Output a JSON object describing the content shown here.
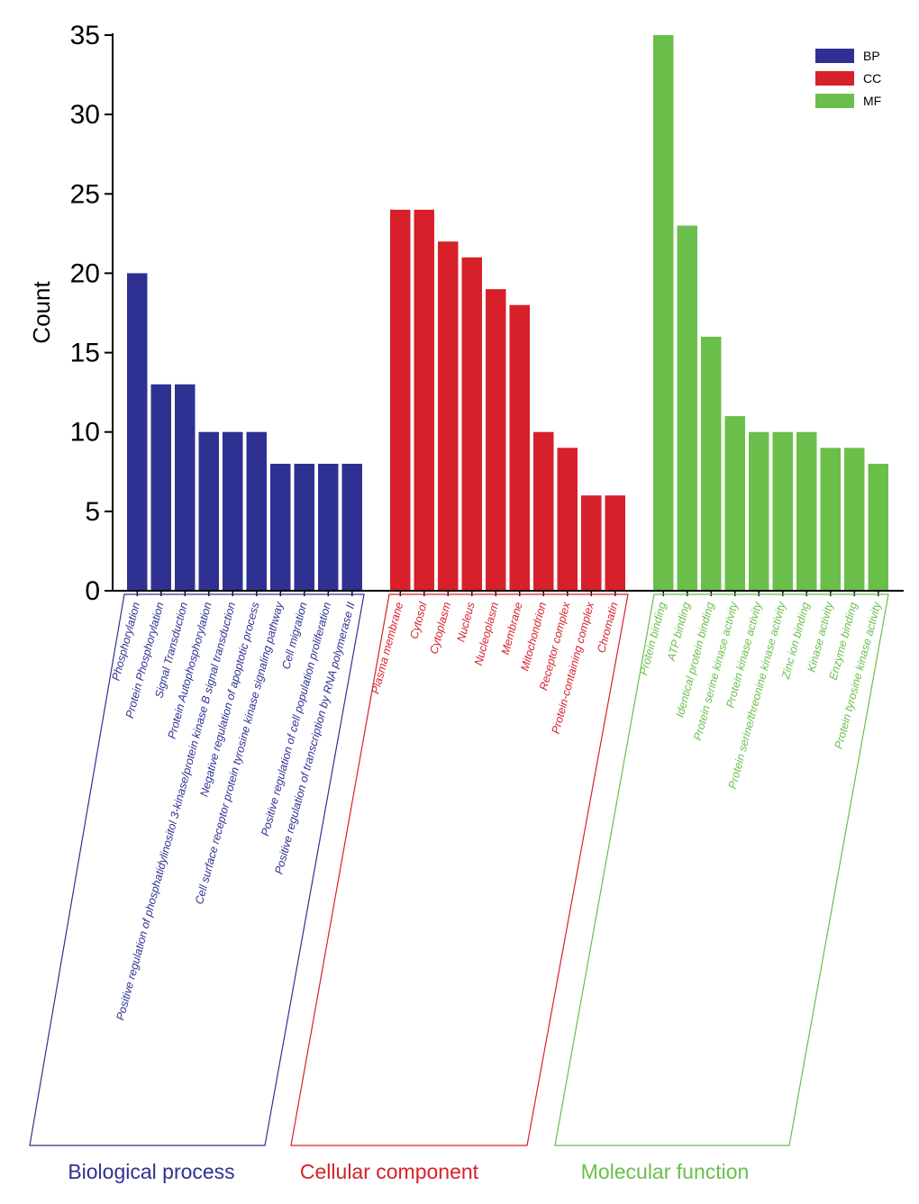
{
  "chart_data": {
    "type": "bar",
    "ylabel": "Count",
    "xlabel": "",
    "ylim": [
      0,
      35
    ],
    "yticks": [
      0,
      5,
      10,
      15,
      20,
      25,
      30,
      35
    ],
    "legend_position": "top-right",
    "legend": [
      {
        "key": "BP",
        "color": "#2e3192"
      },
      {
        "key": "CC",
        "color": "#d7202a"
      },
      {
        "key": "MF",
        "color": "#6abf4b"
      }
    ],
    "groups": [
      {
        "key": "BP",
        "title": "Biological process",
        "color": "#2e3192",
        "categories": [
          "Phosphorylation",
          "Protein Phosphorylation",
          "Signal Transduction",
          "Protein Autophosphorylation",
          "Positive regulation of phosphatidylinositol 3-kinase/protein kinase B signal transduction",
          "Negative regulation of apoptotic process",
          "Cell surface receptor protein tyrosine kinase signaling pathway",
          "Cell migration",
          "Positive regulation of cell population proliferation",
          "Positive regulation of transcription by RNA polymerase II"
        ],
        "values": [
          20,
          13,
          13,
          10,
          10,
          10,
          8,
          8,
          8,
          8
        ]
      },
      {
        "key": "CC",
        "title": "Cellular component",
        "color": "#d7202a",
        "categories": [
          "Plasma membrane",
          "Cytosol",
          "Cytoplasm",
          "Nucleus",
          "Nucleoplasm",
          "Membrane",
          "Mitochondrion",
          "Receptor complex",
          "Protein-containing complex",
          "Chromatin"
        ],
        "values": [
          24,
          24,
          22,
          21,
          19,
          18,
          10,
          9,
          6,
          6
        ]
      },
      {
        "key": "MF",
        "title": "Molecular function",
        "color": "#6abf4b",
        "categories": [
          "Protein binding",
          "ATP binding",
          "Identical protein binding",
          "Protein serine kinase activity",
          "Protein kinase activity",
          "Protein serine/threonine kinase activity",
          "Zinc ion binding",
          "Kinase activity",
          "Enzyme binding",
          "Protein tyrosine kinase activity"
        ],
        "values": [
          35,
          23,
          16,
          11,
          10,
          10,
          10,
          9,
          9,
          8
        ]
      }
    ]
  }
}
